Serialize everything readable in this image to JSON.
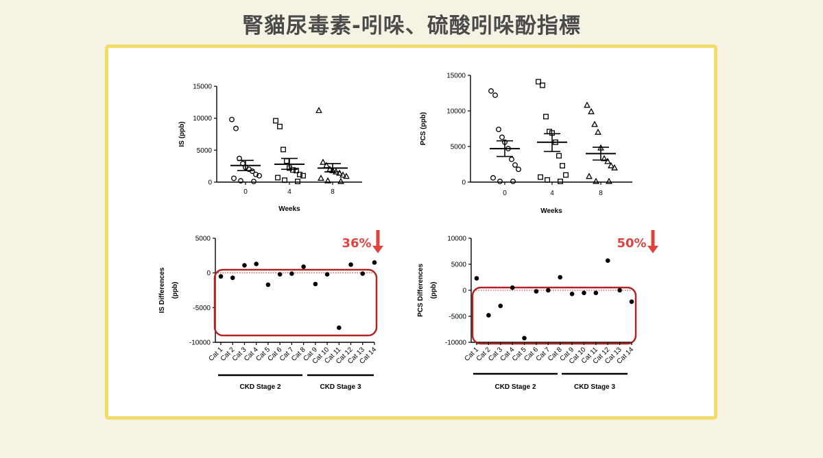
{
  "page": {
    "title": "腎貓尿毒素-吲哚、硫酸吲哚酚指標"
  },
  "colors": {
    "background": "#f6f3e4",
    "frame_border": "#f3db6a",
    "highlight": "#b22222",
    "arrow": "#e0433f"
  },
  "chart_data": [
    {
      "type": "scatter",
      "ylabel": "IS (ppb)",
      "xlabel": "Weeks",
      "categories": [
        "0",
        "4",
        "8"
      ],
      "ylim": [
        0,
        15000
      ],
      "yticks": [
        "0",
        "5000",
        "10000",
        "15000"
      ],
      "marker_shapes": [
        "circle",
        "square",
        "triangle"
      ],
      "series": [
        {
          "values": [
            9800,
            8400,
            3700,
            2900,
            2300,
            2000,
            1700,
            1200,
            1000,
            600,
            200,
            100
          ],
          "mean": 2600,
          "sem_low": 1800,
          "sem_high": 3400
        },
        {
          "values": [
            9600,
            8700,
            5100,
            3300,
            2200,
            1900,
            1800,
            1200,
            1000,
            700,
            300,
            100
          ],
          "mean": 2800,
          "sem_low": 2000,
          "sem_high": 3700
        },
        {
          "values": [
            11200,
            3100,
            2600,
            2000,
            1800,
            1600,
            1400,
            1100,
            900,
            600,
            200,
            100
          ],
          "mean": 2200,
          "sem_low": 1600,
          "sem_high": 2900
        }
      ]
    },
    {
      "type": "scatter",
      "ylabel": "PCS (ppb)",
      "xlabel": "Weeks",
      "categories": [
        "0",
        "4",
        "8"
      ],
      "ylim": [
        0,
        15000
      ],
      "yticks": [
        "0",
        "5000",
        "10000",
        "15000"
      ],
      "marker_shapes": [
        "circle",
        "square",
        "triangle"
      ],
      "series": [
        {
          "values": [
            12800,
            12200,
            7400,
            6300,
            5600,
            4700,
            3200,
            2400,
            1800,
            600,
            100,
            100
          ],
          "mean": 4700,
          "sem_low": 3600,
          "sem_high": 5800
        },
        {
          "values": [
            14100,
            13600,
            9200,
            7100,
            6900,
            5600,
            3700,
            2300,
            1000,
            700,
            300,
            100
          ],
          "mean": 5600,
          "sem_low": 4300,
          "sem_high": 6800
        },
        {
          "values": [
            10800,
            9900,
            8100,
            7000,
            4800,
            3300,
            2900,
            2300,
            2000,
            800,
            100,
            100
          ],
          "mean": 4000,
          "sem_low": 3100,
          "sem_high": 4900
        }
      ]
    },
    {
      "type": "scatter",
      "ylabel_lines": [
        "IS Differences",
        "(ppb)"
      ],
      "categories": [
        "Cat 1",
        "Cat 2",
        "Cat 3",
        "Cat 4",
        "Cat 5",
        "Cat 6",
        "Cat 7",
        "Cat 8",
        "Cat 9",
        "Cat 10",
        "Cat 11",
        "Cat 12",
        "Cat 13",
        "Cat 14"
      ],
      "values": [
        -500,
        -700,
        1100,
        1300,
        -1700,
        -200,
        -100,
        900,
        -1600,
        -200,
        -7900,
        1200,
        -100,
        1500
      ],
      "ylim": [
        -10000,
        5000
      ],
      "yticks": [
        "-10000",
        "-5000",
        "0",
        "5000"
      ],
      "groups": [
        {
          "label": "CKD Stage 2",
          "from": 0,
          "to": 7
        },
        {
          "label": "CKD Stage 3",
          "from": 8,
          "to": 13
        }
      ],
      "annotation": "36%"
    },
    {
      "type": "scatter",
      "ylabel_lines": [
        "PCS Differences",
        "(ppb)"
      ],
      "categories": [
        "Cat 1",
        "Cat 2",
        "Cat 3",
        "Cat 4",
        "Cat 5",
        "Cat 6",
        "Cat 7",
        "Cat 8",
        "Cat 9",
        "Cat 10",
        "Cat 11",
        "Cat 12",
        "Cat 13",
        "Cat 14"
      ],
      "values": [
        2300,
        -4800,
        -3000,
        500,
        -9200,
        -200,
        0,
        2500,
        -700,
        -500,
        -500,
        5700,
        0,
        -2200
      ],
      "ylim": [
        -10000,
        10000
      ],
      "yticks": [
        "-10000",
        "-5000",
        "0",
        "5000",
        "10000"
      ],
      "groups": [
        {
          "label": "CKD Stage 2",
          "from": 0,
          "to": 7
        },
        {
          "label": "CKD Stage 3",
          "from": 8,
          "to": 13
        }
      ],
      "annotation": "50%"
    }
  ]
}
